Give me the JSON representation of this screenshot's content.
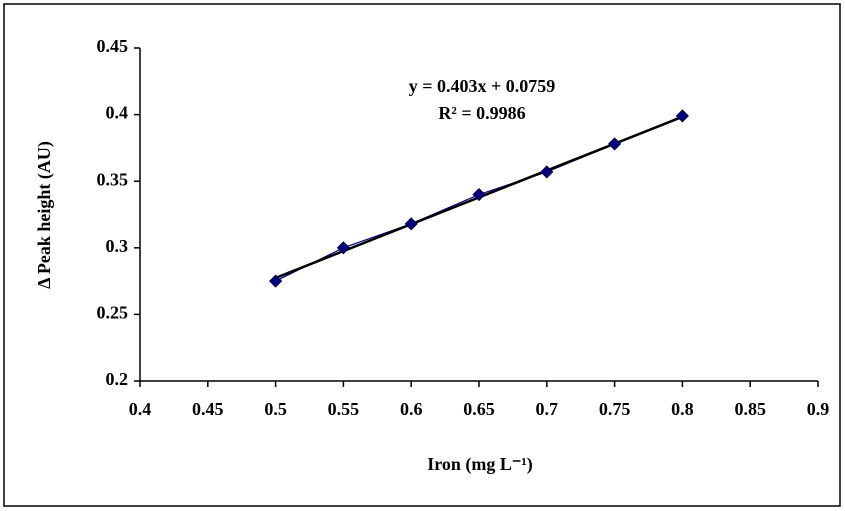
{
  "chart_data": {
    "type": "scatter",
    "xlabel": "Iron (mg L⁻¹)",
    "ylabel": "Δ Peak height (AU)",
    "annotations": [
      "y = 0.403x + 0.0759",
      "R² = 0.9986"
    ],
    "x": [
      0.5,
      0.55,
      0.6,
      0.65,
      0.7,
      0.75,
      0.8
    ],
    "series": [
      {
        "color": "#000080",
        "values": [
          0.275,
          0.3,
          0.318,
          0.34,
          0.357,
          0.378,
          0.399
        ]
      }
    ],
    "trendline": {
      "slope": 0.403,
      "intercept": 0.0759,
      "color": "#000000"
    },
    "xlim": [
      0.4,
      0.9
    ],
    "xticks": [
      0.4,
      0.45,
      0.5,
      0.55,
      0.6,
      0.65,
      0.7,
      0.75,
      0.8,
      0.85,
      0.9
    ],
    "ylim": [
      0.2,
      0.45
    ],
    "yticks": [
      0.2,
      0.25,
      0.3,
      0.35,
      0.4,
      0.45
    ]
  }
}
